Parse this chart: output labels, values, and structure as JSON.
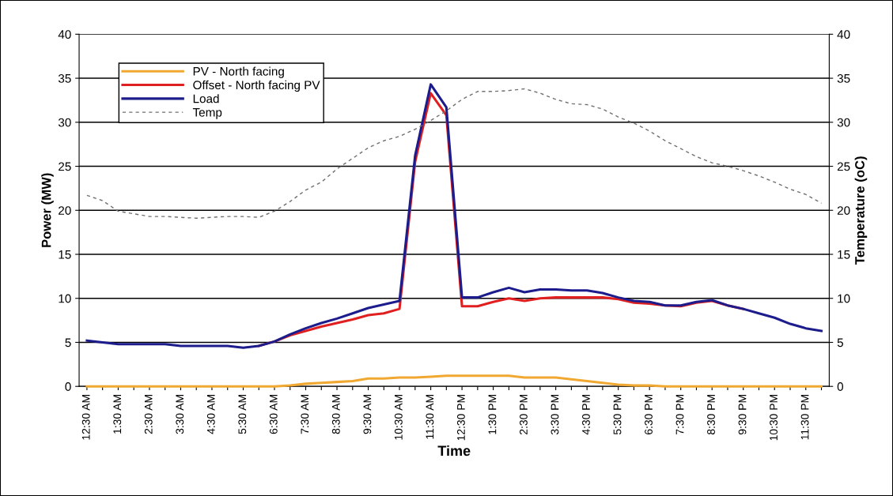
{
  "chart_data": {
    "type": "line",
    "xlabel": "Time",
    "ylabel": "Power (MW)",
    "y2label": "Temperature (oC)",
    "categories": [
      "12:30 AM",
      null,
      "1:30 AM",
      null,
      "2:30 AM",
      null,
      "3:30 AM",
      null,
      "4:30 AM",
      null,
      "5:30 AM",
      null,
      "6:30 AM",
      null,
      "7:30 AM",
      null,
      "8:30 AM",
      null,
      "9:30 AM",
      null,
      "10:30 AM",
      null,
      "11:30 AM",
      null,
      "12:30 PM",
      null,
      "1:30 PM",
      null,
      "2:30 PM",
      null,
      "3:30 PM",
      null,
      "4:30 PM",
      null,
      "5:30 PM",
      null,
      "6:30 PM",
      null,
      "7:30 PM",
      null,
      "8:30 PM",
      null,
      "9:30 PM",
      null,
      "10:30 PM",
      null,
      "11:30 PM",
      null
    ],
    "series": [
      {
        "name": "PV - North facing",
        "color": "#f0a830",
        "line_style": "solid",
        "values": [
          0,
          0,
          0,
          0,
          0,
          0,
          0,
          0,
          0,
          0,
          0,
          0,
          0,
          0.1,
          0.3,
          0.4,
          0.5,
          0.6,
          0.9,
          0.9,
          1.0,
          1.0,
          1.1,
          1.2,
          1.2,
          1.2,
          1.2,
          1.2,
          1.0,
          1.0,
          1.0,
          0.8,
          0.6,
          0.4,
          0.2,
          0.1,
          0.1,
          0,
          0,
          0,
          0,
          0,
          0,
          0,
          0,
          0,
          0,
          0
        ]
      },
      {
        "name": "Offset - North facing PV",
        "color": "#e02020",
        "line_style": "solid",
        "values": [
          null,
          null,
          null,
          null,
          null,
          null,
          null,
          null,
          null,
          null,
          null,
          4.6,
          5.1,
          5.8,
          6.3,
          6.8,
          7.2,
          7.6,
          8.1,
          8.3,
          8.8,
          25.5,
          33.3,
          30.8,
          9.1,
          9.1,
          9.6,
          10.0,
          9.7,
          10.0,
          10.1,
          10.1,
          10.1,
          10.1,
          9.9,
          9.5,
          9.4,
          9.2,
          9.1,
          9.5,
          9.7,
          9.2,
          8.8,
          null,
          null,
          null,
          null,
          null
        ]
      },
      {
        "name": "Load",
        "color": "#1c1c8c",
        "line_style": "solid",
        "values": [
          5.2,
          5.0,
          4.8,
          4.8,
          4.8,
          4.8,
          4.6,
          4.6,
          4.6,
          4.6,
          4.4,
          4.6,
          5.1,
          5.9,
          6.6,
          7.2,
          7.7,
          8.3,
          8.9,
          9.3,
          9.7,
          26.2,
          34.3,
          31.7,
          10.1,
          10.1,
          10.7,
          11.2,
          10.7,
          11.0,
          11.0,
          10.9,
          10.9,
          10.6,
          10.1,
          9.7,
          9.6,
          9.2,
          9.2,
          9.6,
          9.8,
          9.2,
          8.8,
          8.3,
          7.8,
          7.1,
          6.6,
          6.3
        ]
      },
      {
        "name": "Temp",
        "color": "#707070",
        "line_style": "dashed",
        "axis": "y2",
        "values": [
          21.7,
          21.1,
          19.9,
          19.6,
          19.3,
          19.3,
          19.2,
          19.1,
          19.2,
          19.3,
          19.3,
          19.2,
          19.9,
          21.0,
          22.3,
          23.2,
          24.7,
          25.9,
          27.1,
          27.9,
          28.4,
          29.2,
          30.2,
          31.3,
          32.6,
          33.5,
          33.5,
          33.6,
          33.8,
          33.3,
          32.6,
          32.1,
          32.0,
          31.5,
          30.6,
          29.9,
          29.0,
          27.9,
          27.0,
          26.1,
          25.4,
          25.0,
          24.5,
          23.9,
          23.2,
          22.4,
          21.8,
          20.8
        ]
      }
    ],
    "ylim": [
      0,
      40
    ],
    "yticks": [
      0,
      5,
      10,
      15,
      20,
      25,
      30,
      35,
      40
    ],
    "y2lim": [
      0,
      40
    ],
    "y2ticks": [
      0,
      5,
      10,
      15,
      20,
      25,
      30,
      35,
      40
    ],
    "grid": "y",
    "legend": "top left",
    "marker": "none"
  }
}
